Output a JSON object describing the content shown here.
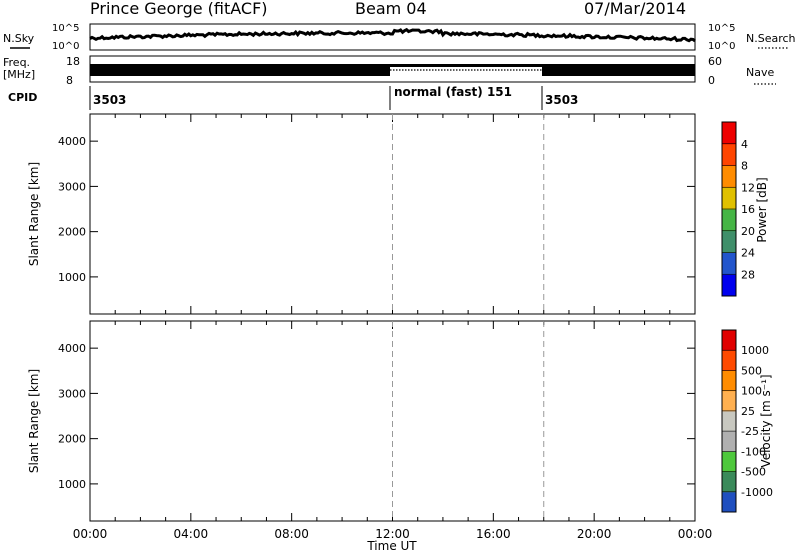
{
  "header": {
    "title": "Prince George (fitACF)",
    "beam": "Beam 04",
    "date": "07/Mar/2014"
  },
  "side_labels": {
    "nsky": "N.Sky",
    "nsearch": "N.Search",
    "freq": "Freq.",
    "freq_unit": "[MHz]",
    "nave": "Nave",
    "cpid": "CPID"
  },
  "noise_panel": {
    "left_ticks": [
      "10^5",
      "10^0"
    ],
    "right_ticks": [
      "10^5",
      "10^0"
    ]
  },
  "freq_panel": {
    "left_ticks": [
      "18",
      "8"
    ],
    "right_ticks": [
      "60",
      "0"
    ]
  },
  "cpid_panel": {
    "segments": [
      {
        "start_hour": 0,
        "label": "3503"
      },
      {
        "start_hour": 12,
        "label": "normal (fast) 151"
      },
      {
        "start_hour": 18,
        "label": "3503"
      }
    ]
  },
  "colors": {
    "power_scale": [
      "#0000ee",
      "#2255cc",
      "#3f8f6a",
      "#45b545",
      "#e0c000",
      "#ff8c00",
      "#ff4500",
      "#ee0000"
    ],
    "velocity_scale": [
      "#e00000",
      "#ff4a00",
      "#ff8c00",
      "#ffb050",
      "#c8c8c0",
      "#b0b0b0",
      "#4ec83c",
      "#3a8a5a",
      "#1f4fbf"
    ]
  },
  "chart_data": [
    {
      "type": "heatmap",
      "title": "Power",
      "ylabel": "Slant Range [km]",
      "xlabel": "",
      "xlim": [
        0,
        24
      ],
      "ylim": [
        180,
        4600
      ],
      "x_ticks": [
        "00:00",
        "04:00",
        "08:00",
        "12:00",
        "16:00",
        "20:00",
        "00:00"
      ],
      "y_ticks": [
        1000,
        2000,
        3000,
        4000
      ],
      "colorbar": {
        "label": "Power [dB]",
        "ticks": [
          "4",
          "8",
          "12",
          "16",
          "20",
          "24",
          "28"
        ]
      }
    },
    {
      "type": "heatmap",
      "title": "Velocity",
      "ylabel": "Slant Range [km]",
      "xlabel": "Time UT",
      "xlim": [
        0,
        24
      ],
      "ylim": [
        180,
        4600
      ],
      "x_ticks": [
        "00:00",
        "04:00",
        "08:00",
        "12:00",
        "16:00",
        "20:00",
        "00:00"
      ],
      "y_ticks": [
        1000,
        2000,
        3000,
        4000
      ],
      "colorbar": {
        "label": "Velocity [m s⁻¹]",
        "ticks": [
          "1000",
          "500",
          "100",
          "25",
          "-25",
          "-100",
          "-500",
          "-1000"
        ]
      }
    }
  ]
}
